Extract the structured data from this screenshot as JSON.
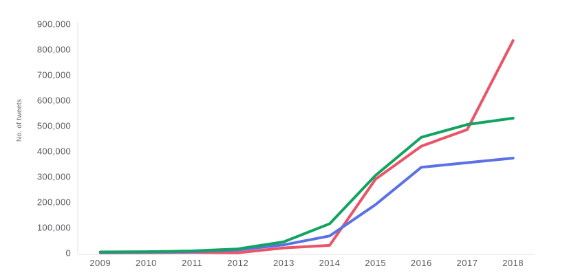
{
  "chart_data": {
    "type": "line",
    "title": "",
    "xlabel": "",
    "ylabel": "No. of tweets",
    "categories": [
      "2009",
      "2010",
      "2011",
      "2012",
      "2013",
      "2014",
      "2015",
      "2016",
      "2017",
      "2018"
    ],
    "series": [
      {
        "name": "red-series",
        "color": "#E95567",
        "values": [
          1000,
          1500,
          2500,
          1000,
          20000,
          30000,
          290000,
          420000,
          485000,
          835000
        ]
      },
      {
        "name": "blue-series",
        "color": "#5B72E4",
        "values": [
          2500,
          3500,
          5000,
          12000,
          32000,
          67000,
          190000,
          337000,
          355000,
          373000
        ]
      },
      {
        "name": "green-series",
        "color": "#12A361",
        "values": [
          4000,
          5000,
          8000,
          16000,
          44000,
          115000,
          305000,
          455000,
          505000,
          530000
        ]
      }
    ],
    "ylim": [
      0,
      900000
    ],
    "ytick_step": 100000,
    "ytick_labels": [
      "0",
      "100,000",
      "200,000",
      "300,000",
      "400,000",
      "500,000",
      "600,000",
      "700,000",
      "800,000",
      "900,000"
    ],
    "grid": false,
    "legend": "none",
    "axis_color": "#e3e3e4",
    "line_width": 4
  }
}
